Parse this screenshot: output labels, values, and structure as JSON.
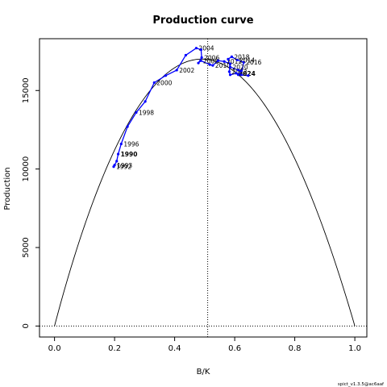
{
  "chart_data": {
    "type": "line",
    "title": "Production curve",
    "xlabel": "B/K",
    "ylabel": "Production",
    "xlim": [
      -0.05,
      1.04
    ],
    "ylim": [
      -700,
      18300
    ],
    "x_ticks": [
      0.0,
      0.2,
      0.4,
      0.6,
      0.8,
      1.0
    ],
    "x_tick_labels": [
      "0.0",
      "0.2",
      "0.4",
      "0.6",
      "0.8",
      "1.0"
    ],
    "y_ticks": [
      0,
      5000,
      10000,
      15000
    ],
    "y_tick_labels": [
      "0",
      "5000",
      "10000",
      "15000"
    ],
    "grid": false,
    "legend": "none",
    "reference_lines": {
      "vertical_x": 0.51,
      "horizontal_y": 0
    },
    "theoretical_curve": {
      "name": "production-curve",
      "peak_x": 0.49,
      "peak_y": 17000,
      "end_x": 1.0,
      "color": "#000000"
    },
    "series": [
      {
        "name": "trajectory",
        "color": "#0000ff",
        "points": [
          {
            "x": 0.197,
            "y": 10150,
            "label": "1992",
            "bold": false
          },
          {
            "x": 0.2,
            "y": 10250,
            "label": "1993",
            "bold": false
          },
          {
            "x": 0.207,
            "y": 10500,
            "label": "",
            "bold": false
          },
          {
            "x": 0.212,
            "y": 10950,
            "label": "1990",
            "bold": true
          },
          {
            "x": 0.222,
            "y": 11600,
            "label": "1996",
            "bold": false
          },
          {
            "x": 0.243,
            "y": 12700,
            "label": "",
            "bold": false
          },
          {
            "x": 0.272,
            "y": 13600,
            "label": "1998",
            "bold": false
          },
          {
            "x": 0.302,
            "y": 14300,
            "label": "",
            "bold": false
          },
          {
            "x": 0.332,
            "y": 15500,
            "label": "2000",
            "bold": false
          },
          {
            "x": 0.37,
            "y": 15950,
            "label": "",
            "bold": false
          },
          {
            "x": 0.407,
            "y": 16300,
            "label": "2002",
            "bold": false
          },
          {
            "x": 0.437,
            "y": 17250,
            "label": "",
            "bold": false
          },
          {
            "x": 0.472,
            "y": 17700,
            "label": "2004",
            "bold": false
          },
          {
            "x": 0.488,
            "y": 17600,
            "label": "",
            "bold": false
          },
          {
            "x": 0.49,
            "y": 17100,
            "label": "2006",
            "bold": false
          },
          {
            "x": 0.479,
            "y": 16750,
            "label": "",
            "bold": false
          },
          {
            "x": 0.487,
            "y": 16900,
            "label": "2008",
            "bold": false
          },
          {
            "x": 0.517,
            "y": 16650,
            "label": "",
            "bold": false
          },
          {
            "x": 0.527,
            "y": 16600,
            "label": "2010",
            "bold": false
          },
          {
            "x": 0.545,
            "y": 16900,
            "label": "",
            "bold": false
          },
          {
            "x": 0.565,
            "y": 16850,
            "label": "2012",
            "bold": false
          },
          {
            "x": 0.585,
            "y": 16700,
            "label": "",
            "bold": false
          },
          {
            "x": 0.582,
            "y": 16200,
            "label": "2022",
            "bold": false
          },
          {
            "x": 0.585,
            "y": 16000,
            "label": "",
            "bold": false
          },
          {
            "x": 0.605,
            "y": 16100,
            "label": "2024",
            "bold": true
          },
          {
            "x": 0.622,
            "y": 16000,
            "label": "",
            "bold": false
          },
          {
            "x": 0.63,
            "y": 16800,
            "label": "2016",
            "bold": false
          },
          {
            "x": 0.608,
            "y": 16950,
            "label": "2014",
            "bold": false
          },
          {
            "x": 0.59,
            "y": 17150,
            "label": "2018",
            "bold": false
          },
          {
            "x": 0.578,
            "y": 17000,
            "label": "",
            "bold": false
          },
          {
            "x": 0.585,
            "y": 16500,
            "label": "2020",
            "bold": false
          },
          {
            "x": 0.612,
            "y": 16300,
            "label": "",
            "bold": false
          },
          {
            "x": 0.622,
            "y": 16250,
            "label": "",
            "bold": false
          },
          {
            "x": 0.612,
            "y": 16000,
            "label": "",
            "bold": false
          },
          {
            "x": 0.645,
            "y": 15950,
            "label": "",
            "bold": false
          }
        ]
      }
    ],
    "footer_text": "spict_v1.3.5@ac6aaf"
  }
}
